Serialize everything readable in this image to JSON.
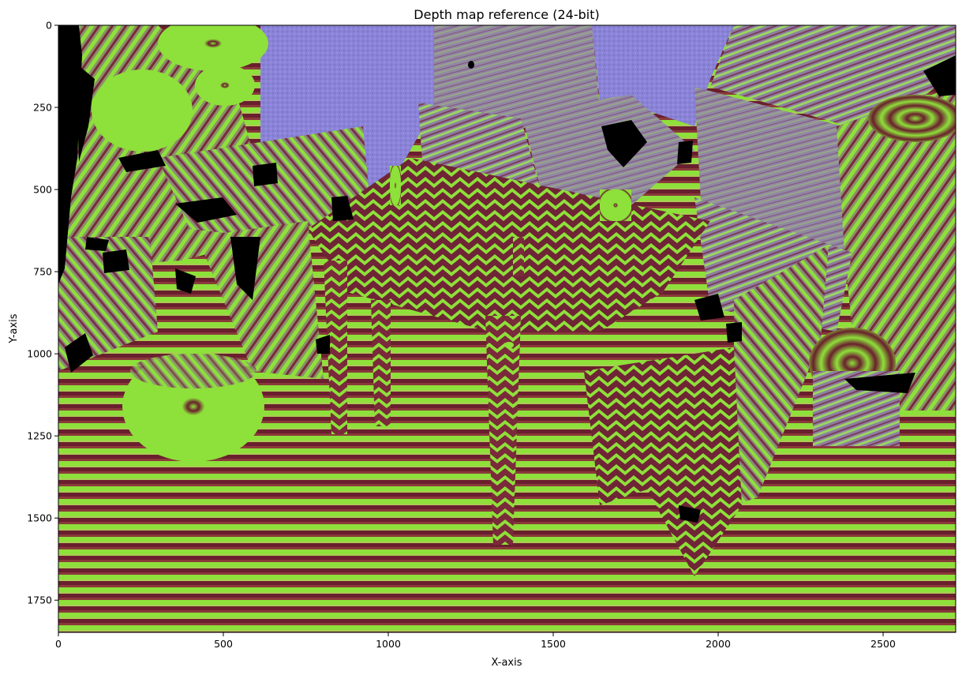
{
  "chart_data": {
    "type": "heatmap",
    "title": "Depth map reference (24-bit)",
    "xlabel": "X-axis",
    "ylabel": "Y-axis",
    "xlim": [
      0,
      2720
    ],
    "ylim": [
      1848,
      0
    ],
    "x_ticks": [
      0,
      500,
      1000,
      1500,
      2000,
      2500
    ],
    "y_ticks": [
      0,
      250,
      500,
      750,
      1000,
      1250,
      1500,
      1750
    ],
    "grid": false,
    "legend": "none",
    "colors": {
      "band_green": "#8ee03a",
      "band_dark_red": "#6a1f2e",
      "olive": "#7e8a3a",
      "lavender": "#8c86e4",
      "grey_purple": "#8c7fa0",
      "missing": "#000000"
    }
  }
}
